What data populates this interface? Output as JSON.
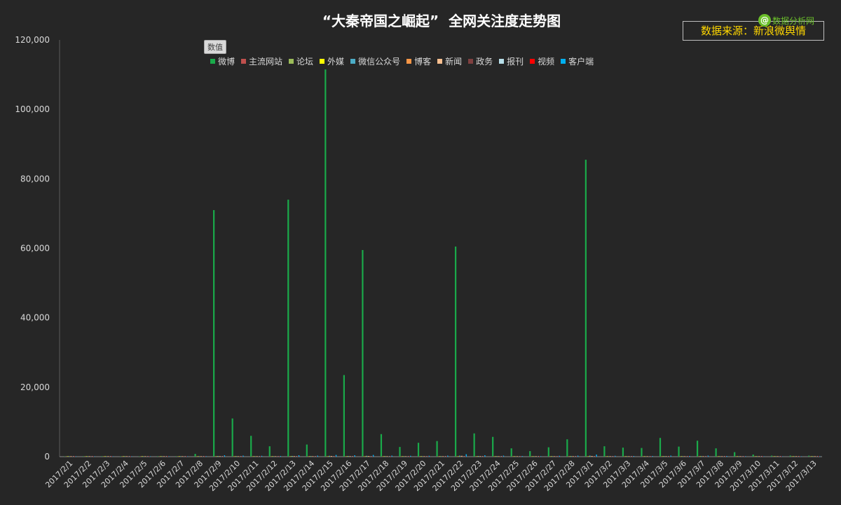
{
  "chart_data": {
    "type": "bar",
    "title": "“大秦帝国之崛起”  全网关注度走势图",
    "source_label": "数据来源：新浪微舆情",
    "watermark_text": "数据分析网",
    "value_tag": "数值",
    "ylim": [
      0,
      120000
    ],
    "yticks": [
      "0",
      "20,000",
      "40,000",
      "60,000",
      "80,000",
      "100,000",
      "120,000"
    ],
    "ytick_values": [
      0,
      20000,
      40000,
      60000,
      80000,
      100000,
      120000
    ],
    "legend_position": "top",
    "grid": false,
    "categories": [
      "2017/2/1",
      "2017/2/2",
      "2017/2/3",
      "2017/2/4",
      "2017/2/5",
      "2017/2/6",
      "2017/2/7",
      "2017/2/8",
      "2017/2/9",
      "2017/2/10",
      "2017/2/11",
      "2017/2/12",
      "2017/2/13",
      "2017/2/14",
      "2017/2/15",
      "2017/2/16",
      "2017/2/17",
      "2017/2/18",
      "2017/2/19",
      "2017/2/20",
      "2017/2/21",
      "2017/2/22",
      "2017/2/23",
      "2017/2/24",
      "2017/2/25",
      "2017/2/26",
      "2017/2/27",
      "2017/2/28",
      "2017/3/1",
      "2017/3/2",
      "2017/3/3",
      "2017/3/4",
      "2017/3/5",
      "2017/3/6",
      "2017/3/7",
      "2017/3/8",
      "2017/3/9",
      "2017/3/10",
      "2017/3/11",
      "2017/3/12",
      "2017/3/13"
    ],
    "series": [
      {
        "name": "微博",
        "color": "#1aaa4a",
        "values": [
          100,
          150,
          150,
          100,
          100,
          150,
          150,
          800,
          71000,
          11000,
          6000,
          3000,
          74000,
          3500,
          111500,
          23500,
          59500,
          6500,
          2800,
          4000,
          4500,
          60500,
          6700,
          5700,
          2400,
          1600,
          2700,
          5000,
          85500,
          3000,
          2600,
          2500,
          5400,
          2900,
          4600,
          2400,
          1300,
          600,
          300,
          300,
          300
        ]
      },
      {
        "name": "主流网站",
        "color": "#c0504d",
        "values": [
          5,
          5,
          5,
          5,
          5,
          5,
          10,
          20,
          60,
          40,
          30,
          20,
          60,
          30,
          70,
          50,
          60,
          40,
          30,
          30,
          30,
          60,
          50,
          40,
          20,
          20,
          30,
          40,
          70,
          30,
          20,
          20,
          40,
          30,
          40,
          20,
          20,
          10,
          10,
          10,
          10
        ]
      },
      {
        "name": "论坛",
        "color": "#9bbb59",
        "values": [
          5,
          5,
          5,
          5,
          5,
          5,
          5,
          10,
          40,
          30,
          20,
          20,
          40,
          20,
          50,
          30,
          40,
          30,
          20,
          20,
          20,
          40,
          30,
          30,
          20,
          20,
          20,
          30,
          50,
          20,
          20,
          20,
          30,
          20,
          30,
          20,
          10,
          10,
          10,
          10,
          10
        ]
      },
      {
        "name": "外媒",
        "color": "#ffff00",
        "values": [
          0,
          0,
          0,
          0,
          0,
          0,
          0,
          0,
          10,
          10,
          10,
          10,
          10,
          10,
          10,
          10,
          10,
          10,
          10,
          10,
          10,
          10,
          10,
          10,
          10,
          10,
          10,
          10,
          10,
          10,
          10,
          10,
          10,
          10,
          10,
          10,
          10,
          10,
          10,
          10,
          10
        ]
      },
      {
        "name": "微信公众号",
        "color": "#4bacc6",
        "values": [
          20,
          20,
          30,
          20,
          20,
          30,
          30,
          80,
          200,
          150,
          120,
          100,
          200,
          150,
          250,
          200,
          250,
          150,
          100,
          120,
          120,
          300,
          200,
          150,
          100,
          80,
          120,
          150,
          300,
          120,
          100,
          100,
          150,
          100,
          150,
          80,
          60,
          40,
          30,
          30,
          30
        ]
      },
      {
        "name": "博客",
        "color": "#f79646",
        "values": [
          5,
          5,
          5,
          5,
          5,
          5,
          5,
          10,
          30,
          20,
          20,
          10,
          30,
          20,
          30,
          30,
          30,
          20,
          10,
          10,
          10,
          30,
          20,
          20,
          10,
          10,
          10,
          20,
          30,
          10,
          10,
          10,
          20,
          10,
          20,
          10,
          10,
          5,
          5,
          5,
          5
        ]
      },
      {
        "name": "新闻",
        "color": "#fac090",
        "values": [
          10,
          10,
          10,
          10,
          10,
          10,
          20,
          40,
          150,
          100,
          80,
          60,
          150,
          80,
          200,
          150,
          200,
          120,
          80,
          80,
          100,
          250,
          150,
          120,
          80,
          60,
          80,
          120,
          200,
          80,
          70,
          60,
          100,
          80,
          100,
          60,
          40,
          30,
          20,
          20,
          20
        ]
      },
      {
        "name": "政务",
        "color": "#7f3f3f",
        "values": [
          0,
          0,
          0,
          0,
          0,
          0,
          0,
          0,
          5,
          5,
          5,
          5,
          5,
          5,
          5,
          5,
          5,
          5,
          5,
          5,
          5,
          5,
          5,
          5,
          5,
          5,
          5,
          5,
          5,
          5,
          5,
          5,
          5,
          5,
          5,
          5,
          5,
          5,
          5,
          5,
          5
        ]
      },
      {
        "name": "报刊",
        "color": "#b7dee8",
        "values": [
          5,
          5,
          5,
          5,
          5,
          5,
          5,
          10,
          30,
          20,
          20,
          10,
          30,
          20,
          40,
          30,
          30,
          20,
          10,
          10,
          10,
          30,
          20,
          20,
          10,
          10,
          10,
          20,
          30,
          10,
          10,
          10,
          20,
          10,
          20,
          10,
          10,
          5,
          5,
          5,
          5
        ]
      },
      {
        "name": "视频",
        "color": "#ff0000",
        "values": [
          5,
          5,
          5,
          5,
          5,
          5,
          5,
          10,
          40,
          30,
          20,
          20,
          40,
          20,
          50,
          30,
          40,
          20,
          20,
          20,
          20,
          40,
          30,
          20,
          20,
          10,
          20,
          30,
          40,
          20,
          20,
          20,
          30,
          20,
          30,
          20,
          10,
          10,
          10,
          10,
          10
        ]
      },
      {
        "name": "客户端",
        "color": "#00b0f0",
        "values": [
          30,
          30,
          40,
          30,
          30,
          40,
          50,
          150,
          400,
          300,
          250,
          200,
          400,
          300,
          500,
          400,
          500,
          300,
          250,
          250,
          300,
          700,
          400,
          300,
          200,
          150,
          250,
          300,
          600,
          250,
          200,
          200,
          300,
          200,
          300,
          200,
          150,
          100,
          80,
          80,
          80
        ]
      }
    ]
  }
}
